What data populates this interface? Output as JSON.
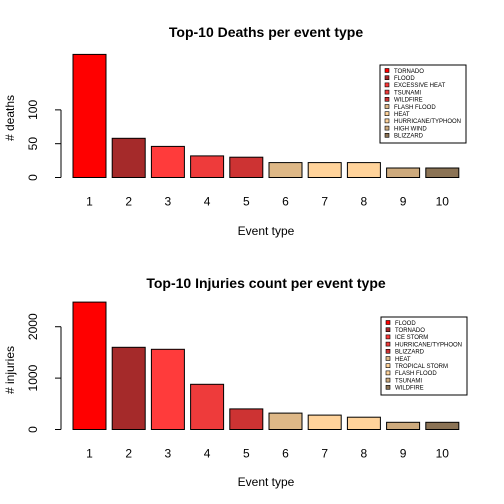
{
  "chart_data": [
    {
      "type": "bar",
      "title": "Top-10 Deaths per event type",
      "xlabel": "Event type",
      "ylabel": "# deaths",
      "categories": [
        "1",
        "2",
        "3",
        "4",
        "5",
        "6",
        "7",
        "8",
        "9",
        "10"
      ],
      "values": [
        182,
        58,
        46,
        32,
        30,
        22,
        22,
        22,
        14,
        14
      ],
      "yticks": [
        0,
        50,
        100
      ],
      "ylim": [
        0,
        190
      ],
      "grid": false,
      "legend_position": "top-right",
      "colors": [
        "#ff0000",
        "#a52a2a",
        "#ff3b3b",
        "#ee3b3b",
        "#cd3333",
        "#deb887",
        "#ffd39b",
        "#ffd39b",
        "#cdaa7d",
        "#8b7355"
      ],
      "legend": [
        "TORNADO",
        "FLOOD",
        "EXCESSIVE HEAT",
        "TSUNAMI",
        "WILDFIRE",
        "FLASH FLOOD",
        "HEAT",
        "HURRICANE/TYPHOON",
        "HIGH WIND",
        "BLIZZARD"
      ]
    },
    {
      "type": "bar",
      "title": "Top-10 Injuries count per event type",
      "xlabel": "Event type",
      "ylabel": "# injuries",
      "categories": [
        "1",
        "2",
        "3",
        "4",
        "5",
        "6",
        "7",
        "8",
        "9",
        "10"
      ],
      "values": [
        2480,
        1600,
        1560,
        880,
        400,
        320,
        280,
        240,
        140,
        140
      ],
      "yticks": [
        0,
        1000,
        2000
      ],
      "ylim": [
        0,
        2520
      ],
      "grid": false,
      "legend_position": "top-right",
      "colors": [
        "#ff0000",
        "#a52a2a",
        "#ff3b3b",
        "#ee3b3b",
        "#cd3333",
        "#deb887",
        "#ffd39b",
        "#ffd39b",
        "#cdaa7d",
        "#8b7355"
      ],
      "legend": [
        "FLOOD",
        "TORNADO",
        "ICE STORM",
        "HURRICANE/TYPHOON",
        "BLIZZARD",
        "HEAT",
        "TROPICAL STORM",
        "FLASH FLOOD",
        "TSUNAMI",
        "WILDFIRE"
      ]
    }
  ]
}
